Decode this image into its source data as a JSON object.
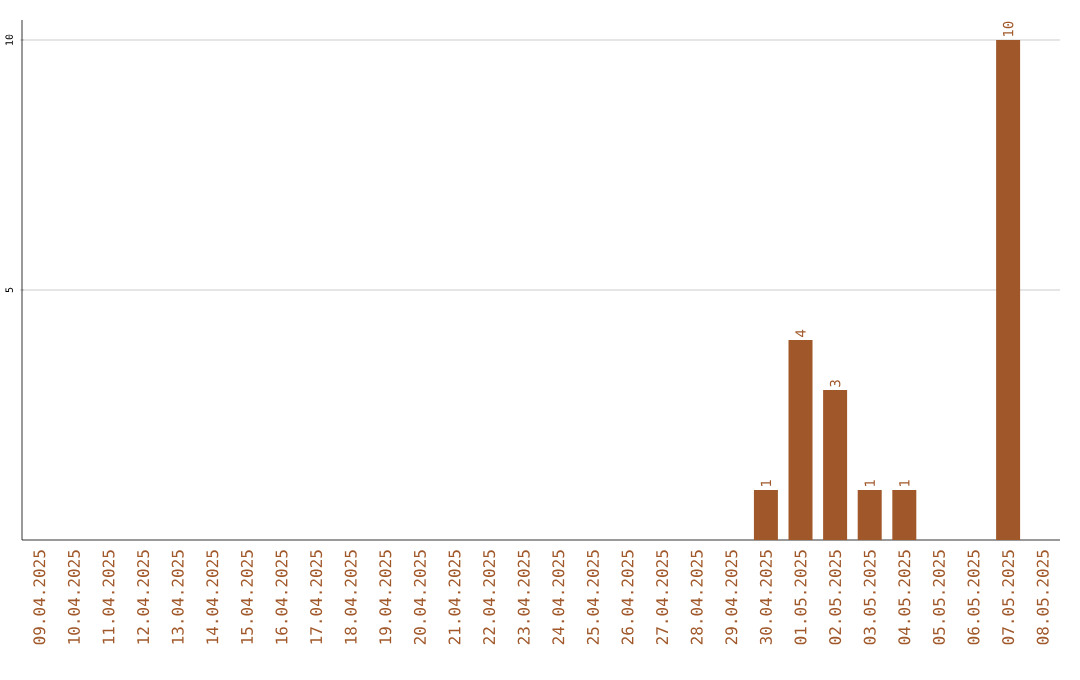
{
  "chart_data": {
    "type": "bar",
    "categories": [
      "09.04.2025",
      "10.04.2025",
      "11.04.2025",
      "12.04.2025",
      "13.04.2025",
      "14.04.2025",
      "15.04.2025",
      "16.04.2025",
      "17.04.2025",
      "18.04.2025",
      "19.04.2025",
      "20.04.2025",
      "21.04.2025",
      "22.04.2025",
      "23.04.2025",
      "24.04.2025",
      "25.04.2025",
      "26.04.2025",
      "27.04.2025",
      "28.04.2025",
      "29.04.2025",
      "30.04.2025",
      "01.05.2025",
      "02.05.2025",
      "03.05.2025",
      "04.05.2025",
      "05.05.2025",
      "06.05.2025",
      "07.05.2025",
      "08.05.2025"
    ],
    "values": [
      0,
      0,
      0,
      0,
      0,
      0,
      0,
      0,
      0,
      0,
      0,
      0,
      0,
      0,
      0,
      0,
      0,
      0,
      0,
      0,
      0,
      1,
      4,
      3,
      1,
      1,
      0,
      0,
      10,
      0
    ],
    "value_labels": [
      null,
      null,
      null,
      null,
      null,
      null,
      null,
      null,
      null,
      null,
      null,
      null,
      null,
      null,
      null,
      null,
      null,
      null,
      null,
      null,
      null,
      "1",
      "4",
      "3",
      "1",
      "1",
      null,
      null,
      "10",
      null
    ],
    "color": "#a0582a",
    "ylim": [
      0,
      10.4
    ],
    "yticks": [
      5,
      10
    ],
    "grid": "y"
  }
}
